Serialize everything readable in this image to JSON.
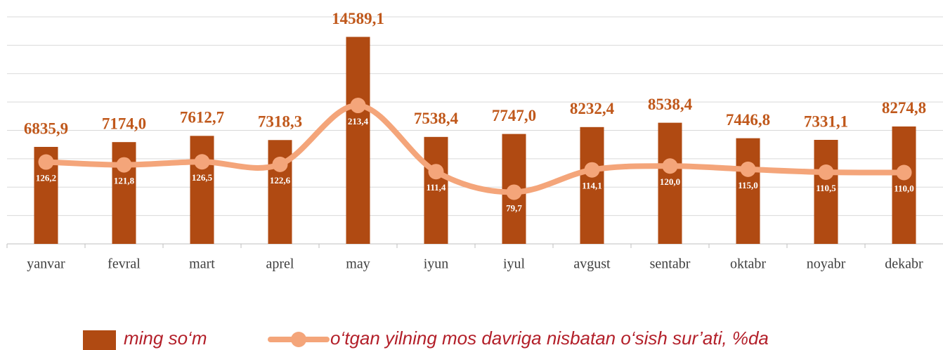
{
  "chart_data": {
    "type": "bar_line",
    "categories": [
      "yanvar",
      "fevral",
      "mart",
      "aprel",
      "may",
      "iyun",
      "iyul",
      "avgust",
      "sentabr",
      "oktabr",
      "noyabr",
      "dekabr"
    ],
    "series": [
      {
        "name": "ming so‘m",
        "type": "bar",
        "color": "#b04a12",
        "values": [
          6835.9,
          7174.0,
          7612.7,
          7318.3,
          14589.1,
          7538.4,
          7747.0,
          8232.4,
          8538.4,
          7446.8,
          7331.1,
          8274.8
        ],
        "value_labels": [
          "6835,9",
          "7174,0",
          "7612,7",
          "7318,3",
          "14589,1",
          "7538,4",
          "7747,0",
          "8232,4",
          "8538,4",
          "7446,8",
          "7331,1",
          "8274,8"
        ]
      },
      {
        "name": "o‘tgan yilning mos davriga nisbatan o‘sish sur’ati, %da",
        "type": "line",
        "axis": "y2",
        "color": "#f4a57a",
        "values": [
          126.2,
          121.8,
          126.5,
          122.6,
          213.4,
          111.4,
          79.7,
          114.1,
          120.0,
          115.0,
          110.5,
          110.0
        ],
        "value_labels": [
          "126,2",
          "121,8",
          "126,5",
          "122,6",
          "213,4",
          "111,4",
          "79,7",
          "114,1",
          "120,0",
          "115,0",
          "110,5",
          "110,0"
        ]
      }
    ],
    "ylim": [
      0,
      16000
    ],
    "yticks": [
      0,
      2000,
      4000,
      6000,
      8000,
      10000,
      12000,
      14000,
      16000
    ],
    "y2lim": [
      0,
      350
    ],
    "grid": true,
    "legend": "bottom"
  }
}
